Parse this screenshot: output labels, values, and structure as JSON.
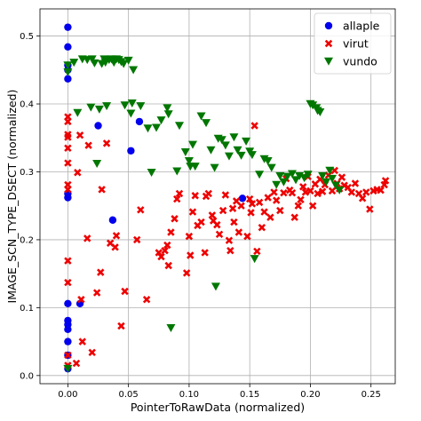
{
  "chart_data": {
    "type": "scatter",
    "title": "",
    "xlabel": "PointerToRawData (normalized)",
    "ylabel": "IMAGE_SCN_TYPE_DSECT (normalized)",
    "xlim": [
      -0.023,
      0.27
    ],
    "ylim": [
      -0.012,
      0.54
    ],
    "x_ticks": [
      0.0,
      0.05,
      0.1,
      0.15,
      0.2,
      0.25
    ],
    "x_tick_labels": [
      "0.00",
      "0.05",
      "0.10",
      "0.15",
      "0.20",
      "0.25"
    ],
    "y_ticks": [
      0.0,
      0.1,
      0.2,
      0.3,
      0.4,
      0.5
    ],
    "y_tick_labels": [
      "0.0",
      "0.1",
      "0.2",
      "0.3",
      "0.4",
      "0.5"
    ],
    "grid": true,
    "legend_position": "top-right",
    "series": [
      {
        "name": "allaple",
        "marker": "circle",
        "color": "#0000ee",
        "points": [
          [
            0.0,
            0.513
          ],
          [
            0.0,
            0.484
          ],
          [
            0.0,
            0.457
          ],
          [
            0.0,
            0.45
          ],
          [
            0.0,
            0.437
          ],
          [
            0.0,
            0.268
          ],
          [
            0.0,
            0.262
          ],
          [
            0.0,
            0.106
          ],
          [
            0.0,
            0.081
          ],
          [
            0.0,
            0.075
          ],
          [
            0.0,
            0.068
          ],
          [
            0.0,
            0.05
          ],
          [
            0.0,
            0.03
          ],
          [
            0.0,
            0.01
          ],
          [
            0.01,
            0.106
          ],
          [
            0.025,
            0.368
          ],
          [
            0.037,
            0.229
          ],
          [
            0.052,
            0.331
          ],
          [
            0.059,
            0.374
          ],
          [
            0.144,
            0.261
          ]
        ]
      },
      {
        "name": "virut",
        "marker": "x",
        "color": "#ee0000",
        "points": [
          [
            0.0,
            0.381
          ],
          [
            0.0,
            0.374
          ],
          [
            0.0,
            0.355
          ],
          [
            0.0,
            0.351
          ],
          [
            0.0,
            0.335
          ],
          [
            0.0,
            0.313
          ],
          [
            0.0,
            0.281
          ],
          [
            0.0,
            0.274
          ],
          [
            0.0,
            0.169
          ],
          [
            0.0,
            0.137
          ],
          [
            0.0,
            0.03
          ],
          [
            0.0,
            0.015
          ],
          [
            0.007,
            0.018
          ],
          [
            0.008,
            0.299
          ],
          [
            0.01,
            0.354
          ],
          [
            0.011,
            0.112
          ],
          [
            0.012,
            0.05
          ],
          [
            0.016,
            0.202
          ],
          [
            0.017,
            0.339
          ],
          [
            0.02,
            0.034
          ],
          [
            0.024,
            0.122
          ],
          [
            0.027,
            0.152
          ],
          [
            0.028,
            0.274
          ],
          [
            0.032,
            0.342
          ],
          [
            0.035,
            0.195
          ],
          [
            0.039,
            0.189
          ],
          [
            0.04,
            0.206
          ],
          [
            0.044,
            0.073
          ],
          [
            0.047,
            0.124
          ],
          [
            0.057,
            0.2
          ],
          [
            0.06,
            0.244
          ],
          [
            0.065,
            0.112
          ],
          [
            0.075,
            0.181
          ],
          [
            0.077,
            0.175
          ],
          [
            0.08,
            0.184
          ],
          [
            0.082,
            0.192
          ],
          [
            0.083,
            0.162
          ],
          [
            0.085,
            0.211
          ],
          [
            0.088,
            0.231
          ],
          [
            0.09,
            0.26
          ],
          [
            0.092,
            0.268
          ],
          [
            0.098,
            0.151
          ],
          [
            0.1,
            0.205
          ],
          [
            0.101,
            0.177
          ],
          [
            0.103,
            0.241
          ],
          [
            0.105,
            0.265
          ],
          [
            0.107,
            0.221
          ],
          [
            0.11,
            0.226
          ],
          [
            0.113,
            0.181
          ],
          [
            0.114,
            0.264
          ],
          [
            0.116,
            0.268
          ],
          [
            0.119,
            0.236
          ],
          [
            0.12,
            0.228
          ],
          [
            0.123,
            0.222
          ],
          [
            0.125,
            0.208
          ],
          [
            0.128,
            0.243
          ],
          [
            0.13,
            0.266
          ],
          [
            0.133,
            0.199
          ],
          [
            0.134,
            0.184
          ],
          [
            0.136,
            0.246
          ],
          [
            0.137,
            0.226
          ],
          [
            0.139,
            0.257
          ],
          [
            0.141,
            0.211
          ],
          [
            0.143,
            0.25
          ],
          [
            0.148,
            0.205
          ],
          [
            0.15,
            0.26
          ],
          [
            0.151,
            0.24
          ],
          [
            0.152,
            0.253
          ],
          [
            0.154,
            0.368
          ],
          [
            0.156,
            0.183
          ],
          [
            0.158,
            0.255
          ],
          [
            0.16,
            0.218
          ],
          [
            0.162,
            0.241
          ],
          [
            0.165,
            0.262
          ],
          [
            0.167,
            0.233
          ],
          [
            0.17,
            0.27
          ],
          [
            0.172,
            0.258
          ],
          [
            0.175,
            0.243
          ],
          [
            0.178,
            0.269
          ],
          [
            0.18,
            0.29
          ],
          [
            0.183,
            0.273
          ],
          [
            0.185,
            0.269
          ],
          [
            0.187,
            0.233
          ],
          [
            0.19,
            0.25
          ],
          [
            0.192,
            0.259
          ],
          [
            0.194,
            0.278
          ],
          [
            0.196,
            0.27
          ],
          [
            0.198,
            0.293
          ],
          [
            0.2,
            0.272
          ],
          [
            0.202,
            0.25
          ],
          [
            0.204,
            0.282
          ],
          [
            0.206,
            0.268
          ],
          [
            0.208,
            0.289
          ],
          [
            0.21,
            0.271
          ],
          [
            0.212,
            0.281
          ],
          [
            0.215,
            0.295
          ],
          [
            0.218,
            0.272
          ],
          [
            0.22,
            0.302
          ],
          [
            0.222,
            0.283
          ],
          [
            0.224,
            0.275
          ],
          [
            0.226,
            0.292
          ],
          [
            0.228,
            0.28
          ],
          [
            0.231,
            0.277
          ],
          [
            0.234,
            0.27
          ],
          [
            0.237,
            0.283
          ],
          [
            0.24,
            0.268
          ],
          [
            0.243,
            0.261
          ],
          [
            0.246,
            0.27
          ],
          [
            0.249,
            0.245
          ],
          [
            0.252,
            0.272
          ],
          [
            0.255,
            0.274
          ],
          [
            0.258,
            0.273
          ],
          [
            0.261,
            0.281
          ],
          [
            0.262,
            0.287
          ]
        ]
      },
      {
        "name": "vundo",
        "marker": "triangle-down",
        "color": "#007700",
        "points": [
          [
            0.0,
            0.457
          ],
          [
            0.0,
            0.447
          ],
          [
            0.0,
            0.01
          ],
          [
            0.005,
            0.461
          ],
          [
            0.008,
            0.387
          ],
          [
            0.012,
            0.466
          ],
          [
            0.016,
            0.465
          ],
          [
            0.019,
            0.395
          ],
          [
            0.02,
            0.466
          ],
          [
            0.022,
            0.46
          ],
          [
            0.024,
            0.312
          ],
          [
            0.026,
            0.392
          ],
          [
            0.028,
            0.459
          ],
          [
            0.03,
            0.466
          ],
          [
            0.031,
            0.461
          ],
          [
            0.032,
            0.397
          ],
          [
            0.034,
            0.465
          ],
          [
            0.036,
            0.466
          ],
          [
            0.038,
            0.461
          ],
          [
            0.04,
            0.466
          ],
          [
            0.042,
            0.465
          ],
          [
            0.044,
            0.462
          ],
          [
            0.046,
            0.459
          ],
          [
            0.047,
            0.398
          ],
          [
            0.05,
            0.464
          ],
          [
            0.052,
            0.386
          ],
          [
            0.053,
            0.401
          ],
          [
            0.054,
            0.45
          ],
          [
            0.06,
            0.397
          ],
          [
            0.066,
            0.364
          ],
          [
            0.069,
            0.299
          ],
          [
            0.073,
            0.365
          ],
          [
            0.077,
            0.376
          ],
          [
            0.082,
            0.394
          ],
          [
            0.083,
            0.385
          ],
          [
            0.085,
            0.07
          ],
          [
            0.09,
            0.301
          ],
          [
            0.092,
            0.368
          ],
          [
            0.097,
            0.329
          ],
          [
            0.1,
            0.316
          ],
          [
            0.101,
            0.308
          ],
          [
            0.103,
            0.34
          ],
          [
            0.105,
            0.308
          ],
          [
            0.11,
            0.382
          ],
          [
            0.114,
            0.372
          ],
          [
            0.118,
            0.332
          ],
          [
            0.121,
            0.306
          ],
          [
            0.122,
            0.131
          ],
          [
            0.124,
            0.349
          ],
          [
            0.127,
            0.347
          ],
          [
            0.13,
            0.339
          ],
          [
            0.133,
            0.323
          ],
          [
            0.137,
            0.351
          ],
          [
            0.14,
            0.332
          ],
          [
            0.143,
            0.324
          ],
          [
            0.147,
            0.345
          ],
          [
            0.15,
            0.33
          ],
          [
            0.152,
            0.325
          ],
          [
            0.154,
            0.172
          ],
          [
            0.158,
            0.296
          ],
          [
            0.162,
            0.319
          ],
          [
            0.165,
            0.316
          ],
          [
            0.168,
            0.306
          ],
          [
            0.172,
            0.281
          ],
          [
            0.175,
            0.294
          ],
          [
            0.178,
            0.285
          ],
          [
            0.181,
            0.293
          ],
          [
            0.185,
            0.297
          ],
          [
            0.188,
            0.288
          ],
          [
            0.191,
            0.294
          ],
          [
            0.195,
            0.291
          ],
          [
            0.198,
            0.296
          ],
          [
            0.2,
            0.4
          ],
          [
            0.202,
            0.398
          ],
          [
            0.205,
            0.394
          ],
          [
            0.206,
            0.39
          ],
          [
            0.208,
            0.388
          ],
          [
            0.21,
            0.294
          ],
          [
            0.213,
            0.285
          ],
          [
            0.216,
            0.302
          ],
          [
            0.218,
            0.29
          ],
          [
            0.221,
            0.28
          ],
          [
            0.224,
            0.273
          ]
        ]
      }
    ]
  }
}
